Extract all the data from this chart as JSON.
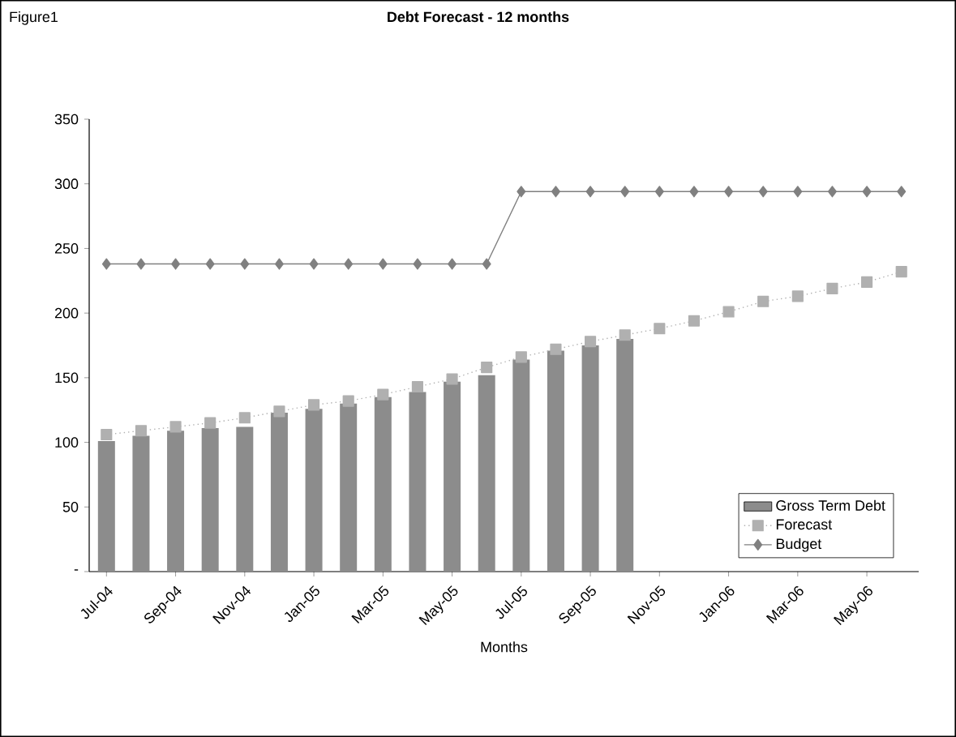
{
  "chart_data": {
    "type": "bar",
    "title": "Debt Forecast - 12 months",
    "xlabel": "Months",
    "annotations": [
      "Figure1"
    ],
    "categories": [
      "Jul-04",
      null,
      "Sep-04",
      null,
      "Nov-04",
      null,
      "Jan-05",
      null,
      "Mar-05",
      null,
      "May-05",
      null,
      "Jul-05",
      null,
      "Sep-05",
      null,
      "Nov-05",
      null,
      "Jan-06",
      null,
      "Mar-06",
      null,
      "May-06",
      null
    ],
    "series": [
      {
        "name": "Gross Term Debt",
        "color": "#8c8c8c",
        "values": [
          101,
          105,
          109,
          111,
          112,
          123,
          126,
          130,
          135,
          139,
          147,
          152,
          164,
          171,
          175,
          180,
          null,
          null,
          null,
          null,
          null,
          null,
          null,
          null
        ]
      },
      {
        "name": "Forecast",
        "type": "line",
        "color": "#b0b0b0",
        "marker": "square",
        "line_style": "dotted",
        "values": [
          106,
          109,
          112,
          115,
          119,
          124,
          129,
          132,
          137,
          143,
          149,
          158,
          166,
          172,
          178,
          183,
          188,
          194,
          201,
          209,
          213,
          219,
          224,
          232
        ]
      },
      {
        "name": "Budget",
        "type": "line",
        "color": "#808080",
        "marker": "diamond",
        "line_style": "solid",
        "values": [
          238,
          238,
          238,
          238,
          238,
          238,
          238,
          238,
          238,
          238,
          238,
          238,
          294,
          294,
          294,
          294,
          294,
          294,
          294,
          294,
          294,
          294,
          294,
          294
        ]
      }
    ],
    "ylim": [
      0,
      350
    ],
    "yticks": [
      {
        "value": 0,
        "label": "-"
      },
      50,
      100,
      150,
      200,
      250,
      300,
      350
    ],
    "legend": "bottom right"
  }
}
